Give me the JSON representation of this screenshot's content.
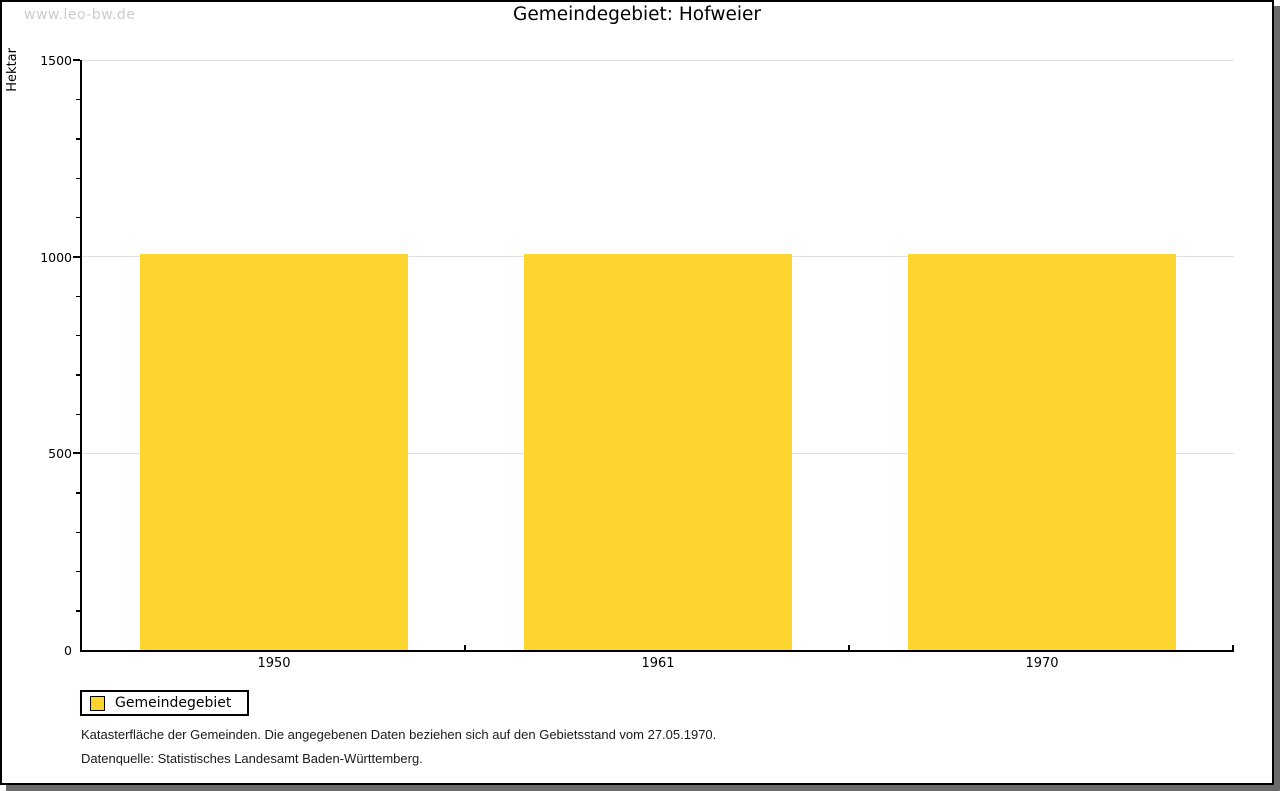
{
  "page": {
    "watermark": "www.leo-bw.de",
    "title": "Gemeindegebiet: Hofweier"
  },
  "chart_data": {
    "type": "bar",
    "title": "Gemeindegebiet: Hofweier",
    "categories": [
      "1950",
      "1961",
      "1970"
    ],
    "series": [
      {
        "name": "Gemeindegebiet",
        "values": [
          1007,
          1007,
          1007
        ],
        "color": "#FCD530"
      }
    ],
    "xlabel": "",
    "ylabel": "Hektar",
    "ylim": [
      0,
      1500
    ],
    "ytick_major": 500,
    "ytick_minor": 100,
    "ytick_labels": [
      "0",
      "500",
      "1000",
      "1500"
    ],
    "grid": "horizontal-major",
    "legend_position": "bottom-left",
    "bar_width_fraction": 0.7
  },
  "legend": {
    "items": [
      {
        "label": "Gemeindegebiet",
        "color": "#FCD530"
      }
    ]
  },
  "footer": {
    "line1": "Katasterfläche der Gemeinden. Die angegebenen Daten beziehen sich auf den Gebietsstand vom 27.05.1970.",
    "line2": "Datenquelle: Statistisches Landesamt Baden-Württemberg."
  },
  "colors": {
    "bar": "#FCD530",
    "gridline": "#E0E0E0",
    "watermark": "#CCCCCC",
    "axis": "#000000",
    "shadow": "#6B6B6B",
    "background": "#FFFFFF"
  }
}
